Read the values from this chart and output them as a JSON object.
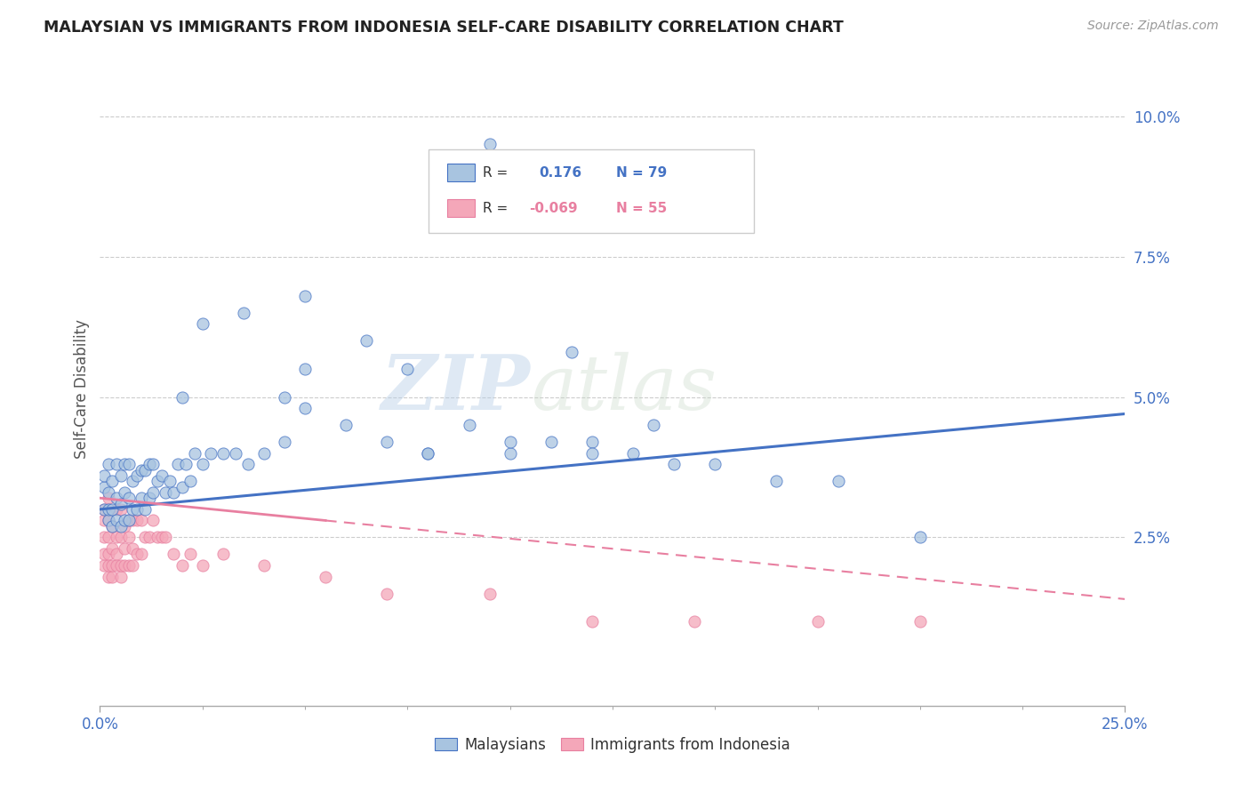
{
  "title": "MALAYSIAN VS IMMIGRANTS FROM INDONESIA SELF-CARE DISABILITY CORRELATION CHART",
  "source": "Source: ZipAtlas.com",
  "ylabel": "Self-Care Disability",
  "xlim": [
    0.0,
    0.25
  ],
  "ylim": [
    -0.005,
    0.108
  ],
  "ytick_labels": [
    "2.5%",
    "5.0%",
    "7.5%",
    "10.0%"
  ],
  "ytick_positions": [
    0.025,
    0.05,
    0.075,
    0.1
  ],
  "color_malaysian": "#a8c4e0",
  "color_indonesia": "#f4a7b9",
  "line_color_malaysian": "#4472c4",
  "line_color_indonesia": "#e87fa0",
  "watermark_zip": "ZIP",
  "watermark_atlas": "atlas",
  "background_color": "#ffffff",
  "malaysian_x": [
    0.001,
    0.001,
    0.001,
    0.002,
    0.002,
    0.002,
    0.002,
    0.003,
    0.003,
    0.003,
    0.004,
    0.004,
    0.004,
    0.005,
    0.005,
    0.005,
    0.006,
    0.006,
    0.006,
    0.007,
    0.007,
    0.007,
    0.008,
    0.008,
    0.009,
    0.009,
    0.01,
    0.01,
    0.011,
    0.011,
    0.012,
    0.012,
    0.013,
    0.013,
    0.014,
    0.015,
    0.016,
    0.017,
    0.018,
    0.019,
    0.02,
    0.021,
    0.022,
    0.023,
    0.025,
    0.027,
    0.03,
    0.033,
    0.036,
    0.04,
    0.045,
    0.05,
    0.06,
    0.07,
    0.08,
    0.09,
    0.1,
    0.11,
    0.12,
    0.13,
    0.14,
    0.15,
    0.165,
    0.18,
    0.2,
    0.025,
    0.035,
    0.05,
    0.065,
    0.075,
    0.095,
    0.115,
    0.135,
    0.05,
    0.08,
    0.1,
    0.12,
    0.045,
    0.02
  ],
  "malaysian_y": [
    0.03,
    0.034,
    0.036,
    0.028,
    0.03,
    0.033,
    0.038,
    0.027,
    0.03,
    0.035,
    0.028,
    0.032,
    0.038,
    0.027,
    0.031,
    0.036,
    0.028,
    0.033,
    0.038,
    0.028,
    0.032,
    0.038,
    0.03,
    0.035,
    0.03,
    0.036,
    0.032,
    0.037,
    0.03,
    0.037,
    0.032,
    0.038,
    0.033,
    0.038,
    0.035,
    0.036,
    0.033,
    0.035,
    0.033,
    0.038,
    0.034,
    0.038,
    0.035,
    0.04,
    0.038,
    0.04,
    0.04,
    0.04,
    0.038,
    0.04,
    0.042,
    0.048,
    0.045,
    0.042,
    0.04,
    0.045,
    0.04,
    0.042,
    0.042,
    0.04,
    0.038,
    0.038,
    0.035,
    0.035,
    0.025,
    0.063,
    0.065,
    0.055,
    0.06,
    0.055,
    0.095,
    0.058,
    0.045,
    0.068,
    0.04,
    0.042,
    0.04,
    0.05,
    0.05
  ],
  "indonesia_x": [
    0.001,
    0.001,
    0.001,
    0.001,
    0.001,
    0.002,
    0.002,
    0.002,
    0.002,
    0.002,
    0.002,
    0.003,
    0.003,
    0.003,
    0.003,
    0.004,
    0.004,
    0.004,
    0.004,
    0.005,
    0.005,
    0.005,
    0.005,
    0.006,
    0.006,
    0.006,
    0.007,
    0.007,
    0.007,
    0.008,
    0.008,
    0.008,
    0.009,
    0.009,
    0.01,
    0.01,
    0.011,
    0.012,
    0.013,
    0.014,
    0.015,
    0.016,
    0.018,
    0.02,
    0.022,
    0.025,
    0.03,
    0.04,
    0.055,
    0.07,
    0.095,
    0.12,
    0.145,
    0.175,
    0.2
  ],
  "indonesia_y": [
    0.02,
    0.022,
    0.025,
    0.028,
    0.03,
    0.018,
    0.02,
    0.022,
    0.025,
    0.028,
    0.032,
    0.018,
    0.02,
    0.023,
    0.027,
    0.02,
    0.022,
    0.025,
    0.03,
    0.018,
    0.02,
    0.025,
    0.03,
    0.02,
    0.023,
    0.027,
    0.02,
    0.025,
    0.028,
    0.02,
    0.023,
    0.028,
    0.022,
    0.028,
    0.022,
    0.028,
    0.025,
    0.025,
    0.028,
    0.025,
    0.025,
    0.025,
    0.022,
    0.02,
    0.022,
    0.02,
    0.022,
    0.02,
    0.018,
    0.015,
    0.015,
    0.01,
    0.01,
    0.01,
    0.01
  ],
  "trend_m_x0": 0.0,
  "trend_m_y0": 0.03,
  "trend_m_x1": 0.25,
  "trend_m_y1": 0.047,
  "trend_i_solid_x0": 0.0,
  "trend_i_solid_y0": 0.032,
  "trend_i_solid_x1": 0.055,
  "trend_i_solid_y1": 0.028,
  "trend_i_dash_x0": 0.055,
  "trend_i_dash_y0": 0.028,
  "trend_i_dash_x1": 0.25,
  "trend_i_dash_y1": 0.014
}
